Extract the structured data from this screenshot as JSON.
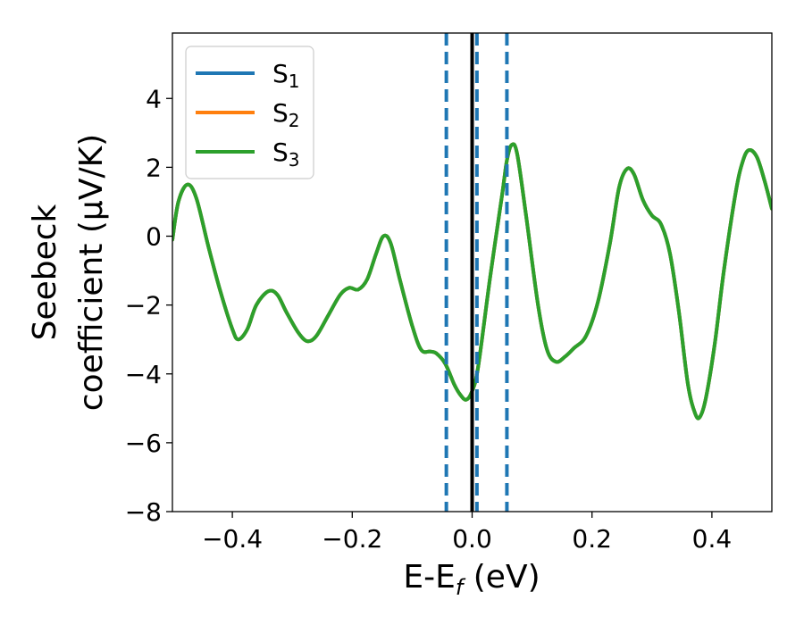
{
  "chart_data": {
    "type": "line",
    "xlabel_main": "E-E",
    "xlabel_sub": "f",
    "xlabel_unit": " (eV)",
    "ylabel_line1": "Seebeck",
    "ylabel_line2": "coefficient  (μV/K)",
    "xlim": [
      -0.5,
      0.5
    ],
    "ylim": [
      -8,
      5.9
    ],
    "xticks": [
      -0.4,
      -0.2,
      0.0,
      0.2,
      0.4
    ],
    "xtick_labels": [
      "−0.4",
      "−0.2",
      "0.0",
      "0.2",
      "0.4"
    ],
    "yticks": [
      -8,
      -6,
      -4,
      -2,
      0,
      2,
      4
    ],
    "ytick_labels": [
      "−8",
      "−6",
      "−4",
      "−2",
      "0",
      "2",
      "4"
    ],
    "legend_position": "top-left",
    "series": [
      {
        "name": "S",
        "sub": "1",
        "color": "#1f77b4"
      },
      {
        "name": "S",
        "sub": "2",
        "color": "#ff7f0e"
      },
      {
        "name": "S",
        "sub": "3",
        "color": "#2ca02c"
      }
    ],
    "curve_points": [
      [
        -0.5,
        -0.1
      ],
      [
        -0.49,
        1.0
      ],
      [
        -0.475,
        1.5
      ],
      [
        -0.46,
        1.1
      ],
      [
        -0.44,
        -0.3
      ],
      [
        -0.42,
        -1.6
      ],
      [
        -0.4,
        -2.7
      ],
      [
        -0.39,
        -3.0
      ],
      [
        -0.375,
        -2.7
      ],
      [
        -0.36,
        -2.0
      ],
      [
        -0.34,
        -1.6
      ],
      [
        -0.325,
        -1.7
      ],
      [
        -0.31,
        -2.2
      ],
      [
        -0.29,
        -2.8
      ],
      [
        -0.275,
        -3.05
      ],
      [
        -0.26,
        -2.9
      ],
      [
        -0.24,
        -2.3
      ],
      [
        -0.22,
        -1.7
      ],
      [
        -0.205,
        -1.5
      ],
      [
        -0.19,
        -1.55
      ],
      [
        -0.175,
        -1.25
      ],
      [
        -0.16,
        -0.5
      ],
      [
        -0.148,
        0.0
      ],
      [
        -0.136,
        -0.2
      ],
      [
        -0.12,
        -1.3
      ],
      [
        -0.1,
        -2.6
      ],
      [
        -0.085,
        -3.3
      ],
      [
        -0.07,
        -3.35
      ],
      [
        -0.06,
        -3.4
      ],
      [
        -0.045,
        -3.7
      ],
      [
        -0.03,
        -4.3
      ],
      [
        -0.02,
        -4.6
      ],
      [
        -0.01,
        -4.75
      ],
      [
        0.0,
        -4.5
      ],
      [
        0.01,
        -3.8
      ],
      [
        0.03,
        -1.2
      ],
      [
        0.05,
        1.2
      ],
      [
        0.058,
        2.2
      ],
      [
        0.066,
        2.65
      ],
      [
        0.075,
        2.4
      ],
      [
        0.09,
        0.6
      ],
      [
        0.11,
        -2.0
      ],
      [
        0.125,
        -3.3
      ],
      [
        0.14,
        -3.65
      ],
      [
        0.155,
        -3.5
      ],
      [
        0.17,
        -3.25
      ],
      [
        0.19,
        -2.9
      ],
      [
        0.21,
        -1.9
      ],
      [
        0.23,
        -0.2
      ],
      [
        0.245,
        1.4
      ],
      [
        0.258,
        1.95
      ],
      [
        0.27,
        1.8
      ],
      [
        0.285,
        1.05
      ],
      [
        0.3,
        0.6
      ],
      [
        0.315,
        0.35
      ],
      [
        0.33,
        -0.5
      ],
      [
        0.345,
        -2.2
      ],
      [
        0.36,
        -4.3
      ],
      [
        0.372,
        -5.15
      ],
      [
        0.38,
        -5.25
      ],
      [
        0.39,
        -4.7
      ],
      [
        0.405,
        -3.1
      ],
      [
        0.42,
        -1.0
      ],
      [
        0.44,
        1.3
      ],
      [
        0.452,
        2.2
      ],
      [
        0.462,
        2.5
      ],
      [
        0.475,
        2.3
      ],
      [
        0.488,
        1.6
      ],
      [
        0.5,
        0.8
      ]
    ],
    "vlines_dashed": [
      -0.043,
      0.008,
      0.058
    ],
    "vline_dashed_color": "#1f77b4",
    "vline_solid": 0.0,
    "vline_solid_color": "#000000"
  }
}
